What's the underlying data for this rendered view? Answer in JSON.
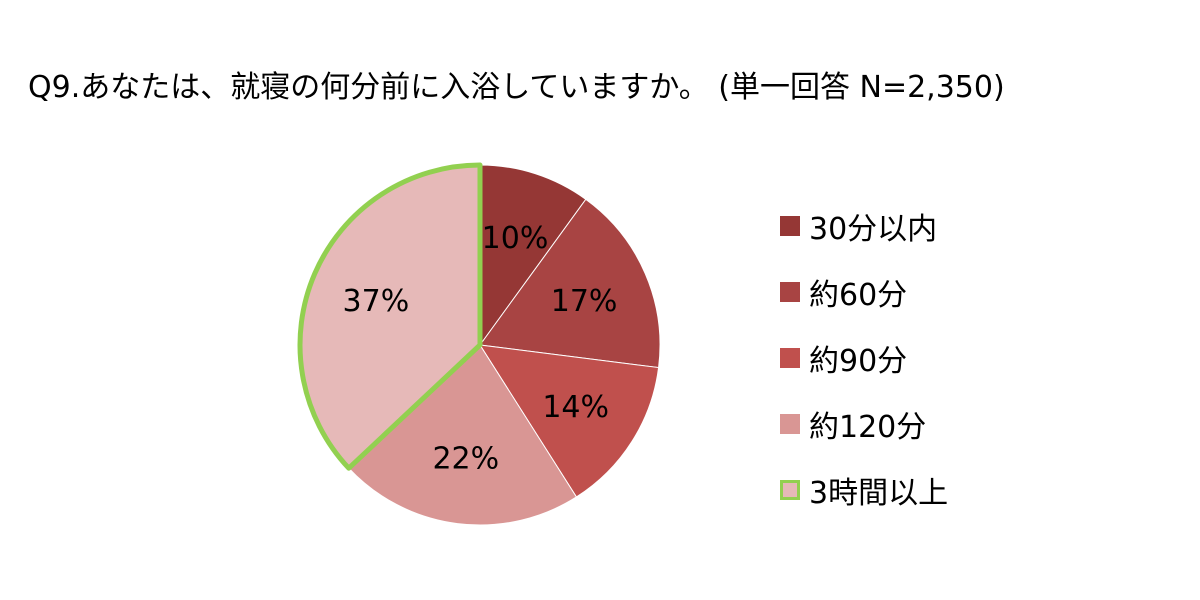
{
  "chart_data": {
    "type": "pie",
    "title": "Q9.あなたは、就寝の何分前に入浴していますか。 (単一回答 N=2,350)",
    "slices": [
      {
        "name": "30分以内",
        "value": 10,
        "label": "10%",
        "color": "#953735",
        "label_color": "#ffffff"
      },
      {
        "name": "約60分",
        "value": 17,
        "label": "17%",
        "color": "#a84443",
        "label_color": "#ffffff"
      },
      {
        "name": "約90分",
        "value": 14,
        "label": "14%",
        "color": "#c0504d",
        "label_color": "#000000"
      },
      {
        "name": "約120分",
        "value": 22,
        "label": "22%",
        "color": "#d99694",
        "label_color": "#000000"
      },
      {
        "name": "3時間以上",
        "value": 37,
        "label": "37%",
        "color": "#e6b9b8",
        "label_color": "#000000",
        "border_color": "#92d050"
      }
    ],
    "legend_position": "right",
    "start_angle": "top",
    "direction": "clockwise"
  }
}
